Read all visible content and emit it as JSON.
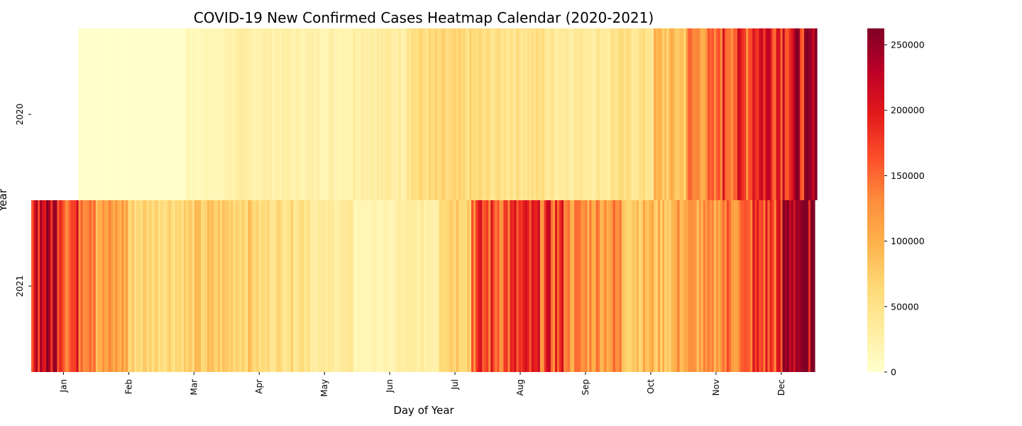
{
  "chart_data": {
    "type": "heatmap",
    "title": "COVID-19 New Confirmed Cases Heatmap Calendar (2020-2021)",
    "xlabel": "Day of Year",
    "ylabel": "Year",
    "rows": [
      "2020",
      "2021"
    ],
    "x_tick_labels": [
      "Jan",
      "Feb",
      "Mar",
      "Apr",
      "May",
      "Jun",
      "Jul",
      "Aug",
      "Sep",
      "Oct",
      "Nov",
      "Dec"
    ],
    "colorbar": {
      "min": 0,
      "max": 262500,
      "ticks": [
        0,
        50000,
        100000,
        150000,
        200000,
        250000
      ],
      "colormap": "YlOrRd"
    },
    "colorscale": [
      "#ffffcc",
      "#ffeda0",
      "#fed976",
      "#feb24c",
      "#fd8d3c",
      "#fc4e2a",
      "#e31a1c",
      "#bd0026",
      "#800026"
    ],
    "series": [
      {
        "name": "2020",
        "start_day": 23,
        "segments": [
          {
            "from_day": 23,
            "to_day": 72,
            "level": 1200
          },
          {
            "from_day": 73,
            "to_day": 90,
            "level": 15000
          },
          {
            "from_day": 91,
            "to_day": 120,
            "level": 27000
          },
          {
            "from_day": 121,
            "to_day": 150,
            "level": 24000
          },
          {
            "from_day": 151,
            "to_day": 175,
            "level": 33000
          },
          {
            "from_day": 176,
            "to_day": 210,
            "level": 58000
          },
          {
            "from_day": 211,
            "to_day": 240,
            "level": 52000
          },
          {
            "from_day": 241,
            "to_day": 270,
            "level": 40000
          },
          {
            "from_day": 271,
            "to_day": 290,
            "level": 50000
          },
          {
            "from_day": 291,
            "to_day": 305,
            "level": 85000
          },
          {
            "from_day": 306,
            "to_day": 320,
            "level": 130000
          },
          {
            "from_day": 321,
            "to_day": 335,
            "level": 170000
          },
          {
            "from_day": 336,
            "to_day": 366,
            "level": 210000
          }
        ]
      },
      {
        "name": "2021",
        "start_day": 1,
        "segments": [
          {
            "from_day": 1,
            "to_day": 15,
            "level": 225000
          },
          {
            "from_day": 16,
            "to_day": 30,
            "level": 170000
          },
          {
            "from_day": 31,
            "to_day": 45,
            "level": 110000
          },
          {
            "from_day": 46,
            "to_day": 75,
            "level": 68000
          },
          {
            "from_day": 76,
            "to_day": 105,
            "level": 75000
          },
          {
            "from_day": 106,
            "to_day": 130,
            "level": 58000
          },
          {
            "from_day": 131,
            "to_day": 150,
            "level": 35000
          },
          {
            "from_day": 151,
            "to_day": 170,
            "level": 18000
          },
          {
            "from_day": 171,
            "to_day": 190,
            "level": 30000
          },
          {
            "from_day": 191,
            "to_day": 205,
            "level": 80000
          },
          {
            "from_day": 206,
            "to_day": 225,
            "level": 165000
          },
          {
            "from_day": 226,
            "to_day": 250,
            "level": 170000
          },
          {
            "from_day": 251,
            "to_day": 275,
            "level": 125000
          },
          {
            "from_day": 276,
            "to_day": 300,
            "level": 90000
          },
          {
            "from_day": 301,
            "to_day": 320,
            "level": 110000
          },
          {
            "from_day": 321,
            "to_day": 335,
            "level": 140000
          },
          {
            "from_day": 336,
            "to_day": 350,
            "level": 170000
          },
          {
            "from_day": 351,
            "to_day": 365,
            "level": 255000
          }
        ]
      }
    ]
  }
}
